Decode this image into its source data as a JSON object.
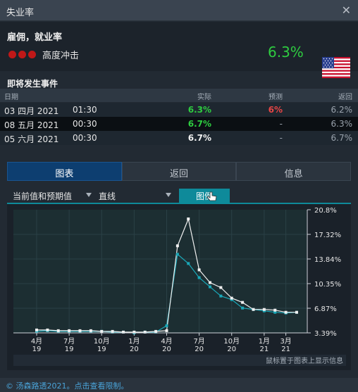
{
  "window": {
    "title": "失业率",
    "close_glyph": "✕"
  },
  "indicator": {
    "name": "雇佣，就业率",
    "impact_label": "高度冲击",
    "actual": "6.3%",
    "flag": "us-flag-icon"
  },
  "events": {
    "title": "即将发生事件",
    "headers": {
      "date": "日期",
      "actual": "实际",
      "forecast": "预测",
      "previous": "返回"
    },
    "rows": [
      {
        "date": "03 四月 2021",
        "time": "01:30",
        "actual": "6.3%",
        "forecast": "6%",
        "previous": "6.2%"
      },
      {
        "date": "08 五月 2021",
        "time": "00:30",
        "actual": "6.7%",
        "forecast": "-",
        "previous": "6.3%"
      },
      {
        "date": "05 六月 2021",
        "time": "00:30",
        "actual": "6.7%",
        "forecast": "-",
        "previous": "6.7%"
      }
    ]
  },
  "tabs": [
    "图表",
    "返回",
    "信息"
  ],
  "controls": {
    "series_select": "当前值和预期值",
    "type_select": "直线",
    "legend_button": "图例"
  },
  "chart_hint": "鼠标置于图表上显示信息",
  "footer": "© 汤森路透2021。点击查看限制。",
  "colors": {
    "actual_line": "#f0f0f0",
    "forecast_line": "#1aa8b8",
    "impact": "#c01818",
    "up": "#2ecc40",
    "down": "#e84545"
  },
  "chart_data": {
    "type": "line",
    "title": "",
    "ylabel": "",
    "xlabel": "",
    "ylim": [
      3.39,
      20.8
    ],
    "y_ticks": [
      "20.8%",
      "17.32%",
      "13.84%",
      "10.35%",
      "6.87%",
      "3.39%"
    ],
    "x_ticks": [
      {
        "label": [
          "4月",
          "19"
        ],
        "index": 0
      },
      {
        "label": [
          "7月",
          "19"
        ],
        "index": 3
      },
      {
        "label": [
          "10月",
          "19"
        ],
        "index": 6
      },
      {
        "label": [
          "1月",
          "20"
        ],
        "index": 9
      },
      {
        "label": [
          "4月",
          "20"
        ],
        "index": 12
      },
      {
        "label": [
          "7月",
          "20"
        ],
        "index": 15
      },
      {
        "label": [
          "10月",
          "20"
        ],
        "index": 18
      },
      {
        "label": [
          "1月",
          "21"
        ],
        "index": 21
      },
      {
        "label": [
          "3月",
          "21"
        ],
        "index": 23
      }
    ],
    "grid": true,
    "series": [
      {
        "key": "actual",
        "values": [
          3.8,
          3.8,
          3.7,
          3.7,
          3.7,
          3.7,
          3.6,
          3.6,
          3.5,
          3.5,
          3.5,
          3.6,
          3.7,
          15.7,
          19.5,
          12.3,
          10.5,
          9.8,
          8.3,
          7.7,
          6.7,
          6.7,
          6.6,
          6.3,
          6.3
        ]
      },
      {
        "key": "forecast",
        "values": [
          3.6,
          3.7,
          3.6,
          3.6,
          3.6,
          3.6,
          3.6,
          3.5,
          3.5,
          3.4,
          3.5,
          3.5,
          4.4,
          14.5,
          13.2,
          11.2,
          9.9,
          8.6,
          8.1,
          6.9,
          6.7,
          6.5,
          6.3,
          6.2,
          6.3
        ]
      }
    ]
  }
}
